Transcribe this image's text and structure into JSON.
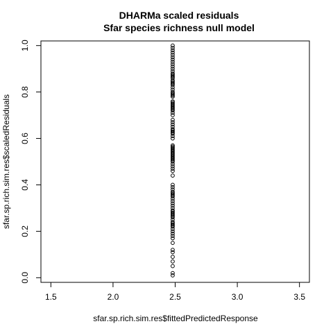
{
  "chart_data": {
    "type": "scatter",
    "title": "DHARMa scaled residuals",
    "subtitle": "Sfar species richness null model",
    "xlabel": "sfar.sp.rich.sim.res$fittedPredictedResponse",
    "ylabel": "sfar.sp.rich.sim.res$scaledResiduals",
    "xlim": [
      1.42,
      3.58
    ],
    "ylim": [
      -0.02,
      1.02
    ],
    "x_ticks": [
      1.5,
      2.0,
      2.5,
      3.0,
      3.5
    ],
    "x_tick_labels": [
      "1.5",
      "2.0",
      "2.5",
      "3.0",
      "3.5"
    ],
    "y_ticks": [
      0.0,
      0.2,
      0.4,
      0.6,
      0.8,
      1.0
    ],
    "y_tick_labels": [
      "0.0",
      "0.2",
      "0.4",
      "0.6",
      "0.8",
      "1.0"
    ],
    "marker": "open-circle",
    "point_color": "#000000",
    "grid": false,
    "legend": "none",
    "series": [
      {
        "x": [
          2.48,
          2.48,
          2.48,
          2.48,
          2.48,
          2.48,
          2.48,
          2.48,
          2.48,
          2.48,
          2.48,
          2.48,
          2.48,
          2.48,
          2.48,
          2.48,
          2.48,
          2.48,
          2.48,
          2.48,
          2.48,
          2.48,
          2.48,
          2.48,
          2.48,
          2.48,
          2.48,
          2.48,
          2.48,
          2.48,
          2.48,
          2.48,
          2.48,
          2.48,
          2.48,
          2.48,
          2.48,
          2.48,
          2.48,
          2.48,
          2.48,
          2.48,
          2.48,
          2.48,
          2.48,
          2.48,
          2.48,
          2.48,
          2.48,
          2.48,
          2.48,
          2.48,
          2.48,
          2.48,
          2.48,
          2.48,
          2.48,
          2.48,
          2.48,
          2.48,
          2.48,
          2.48,
          2.48,
          2.48,
          2.48,
          2.48,
          2.48,
          2.48,
          2.48,
          2.48,
          2.48,
          2.48,
          2.48,
          2.48,
          2.48,
          2.48,
          2.48,
          2.48,
          2.48,
          2.48,
          2.48,
          2.48,
          2.48,
          2.48,
          2.48,
          2.48,
          2.48,
          2.48,
          2.48,
          2.48,
          2.48,
          2.48,
          2.48,
          2.48,
          2.48,
          2.48,
          2.48,
          2.48,
          2.48,
          2.48,
          2.48,
          2.48,
          2.48,
          2.48,
          2.48,
          2.48,
          2.48,
          2.48,
          2.48,
          2.48
        ],
        "y": [
          0.01,
          0.02,
          0.05,
          0.07,
          0.09,
          0.11,
          0.12,
          0.15,
          0.17,
          0.18,
          0.19,
          0.2,
          0.21,
          0.22,
          0.23,
          0.24,
          0.25,
          0.26,
          0.27,
          0.28,
          0.29,
          0.3,
          0.31,
          0.32,
          0.33,
          0.34,
          0.35,
          0.36,
          0.37,
          0.38,
          0.39,
          0.4,
          0.44,
          0.46,
          0.47,
          0.48,
          0.49,
          0.5,
          0.51,
          0.52,
          0.53,
          0.54,
          0.55,
          0.56,
          0.57,
          0.6,
          0.61,
          0.62,
          0.63,
          0.64,
          0.65,
          0.66,
          0.67,
          0.68,
          0.7,
          0.71,
          0.72,
          0.73,
          0.74,
          0.75,
          0.76,
          0.78,
          0.79,
          0.8,
          0.81,
          0.82,
          0.83,
          0.84,
          0.85,
          0.86,
          0.87,
          0.88,
          0.89,
          0.9,
          0.91,
          0.92,
          0.93,
          0.94,
          0.95,
          0.96,
          0.97,
          0.98,
          0.99,
          1.0,
          0.535,
          0.545,
          0.555,
          0.565,
          0.505,
          0.515,
          0.525,
          0.745,
          0.755,
          0.725,
          0.735,
          0.865,
          0.875,
          0.835,
          0.845,
          0.785,
          0.795,
          0.265,
          0.275,
          0.285,
          0.225,
          0.235,
          0.355,
          0.365,
          0.625,
          0.635
        ]
      }
    ]
  }
}
